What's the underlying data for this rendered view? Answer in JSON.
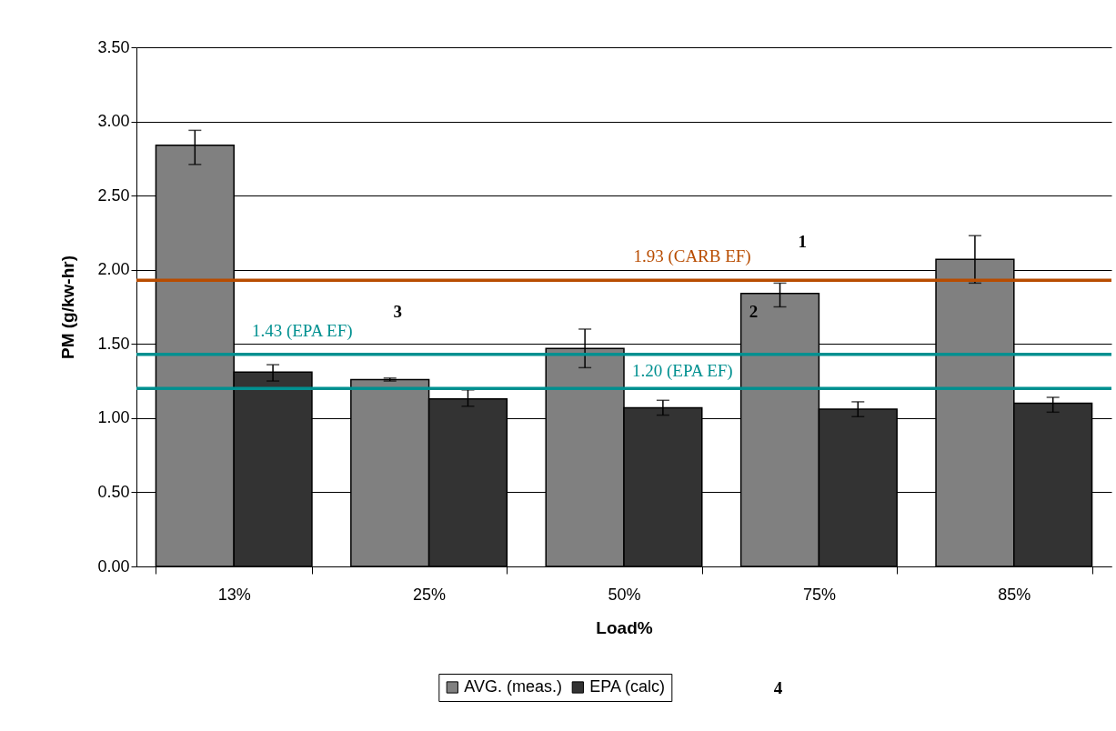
{
  "chart_data": {
    "type": "bar",
    "xlabel": "Load%",
    "ylabel": "PM (g/kw-hr)",
    "categories": [
      "13%",
      "25%",
      "50%",
      "75%",
      "85%"
    ],
    "series": [
      {
        "name": "AVG. (meas.)",
        "color": "#808080",
        "values": [
          2.84,
          1.26,
          1.47,
          1.84,
          2.07
        ],
        "errors": [
          [
            2.71,
            2.94
          ],
          [
            1.25,
            1.27
          ],
          [
            1.34,
            1.6
          ],
          [
            1.75,
            1.91
          ],
          [
            1.91,
            2.23
          ]
        ]
      },
      {
        "name": "EPA (calc)",
        "color": "#333333",
        "values": [
          1.31,
          1.13,
          1.07,
          1.06,
          1.1
        ],
        "errors": [
          [
            1.25,
            1.36
          ],
          [
            1.08,
            1.19
          ],
          [
            1.02,
            1.12
          ],
          [
            1.01,
            1.11
          ],
          [
            1.04,
            1.14
          ]
        ]
      }
    ],
    "ylim": [
      0,
      3.5
    ],
    "yticks": [
      {
        "value": 0,
        "label": "0.00"
      },
      {
        "value": 0.5,
        "label": "0.50"
      },
      {
        "value": 1,
        "label": "1.00"
      },
      {
        "value": 1.5,
        "label": "1.50"
      },
      {
        "value": 2,
        "label": "2.00"
      },
      {
        "value": 2.5,
        "label": "2.50"
      },
      {
        "value": 3,
        "label": "3.00"
      },
      {
        "value": 3.5,
        "label": "3.50"
      }
    ],
    "grid": "y",
    "legend": "bottom",
    "ref_lines": [
      {
        "axis": "y",
        "value": 1.93,
        "label": "1.93 (CARB EF)",
        "color": "#b84c00"
      },
      {
        "axis": "y",
        "value": 1.43,
        "label": "1.43 (EPA EF)",
        "color": "#009090"
      },
      {
        "axis": "y",
        "value": 1.2,
        "label": "1.20 (EPA EF)",
        "color": "#009090"
      }
    ],
    "annotations": [
      "1",
      "2",
      "3",
      "4"
    ]
  }
}
